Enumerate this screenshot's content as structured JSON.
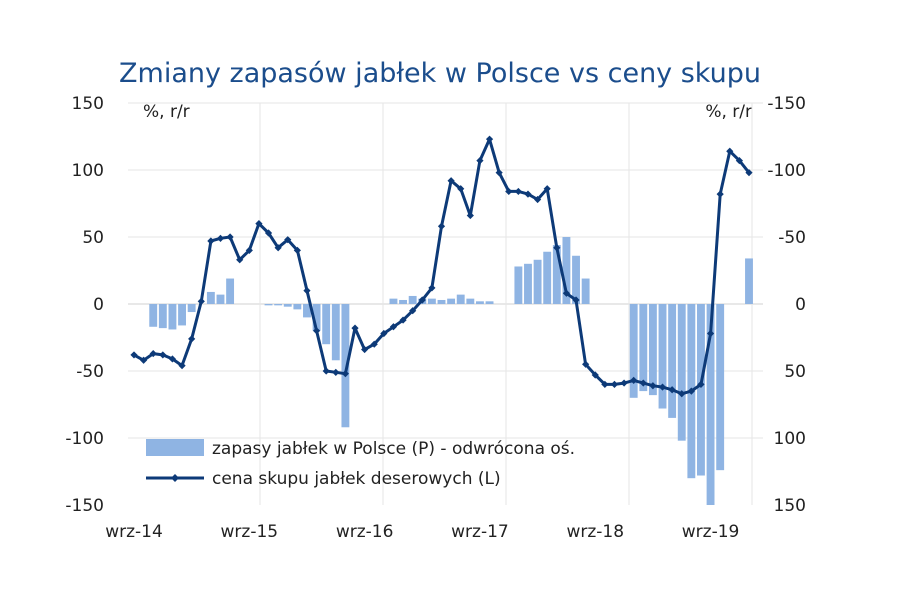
{
  "chart_data": {
    "type": "bar+line",
    "title": "Zmiany zapasów jabłek w Polsce vs ceny skupu",
    "left_axis": {
      "unit": "%, r/r",
      "ylim": [
        -150,
        150
      ],
      "ticks": [
        "150",
        "100",
        "50",
        "0",
        "-50",
        "-100",
        "-150"
      ]
    },
    "right_axis": {
      "unit": "%, r/r",
      "inverted": true,
      "ylim": [
        -150,
        150
      ],
      "ticks": [
        "-150",
        "-100",
        "-50",
        "0",
        "50",
        "100",
        "150"
      ]
    },
    "x_tick_labels": [
      "wrz-14",
      "wrz-15",
      "wrz-16",
      "wrz-17",
      "wrz-18",
      "wrz-19"
    ],
    "x_tick_index": [
      0,
      12,
      24,
      36,
      48,
      60
    ],
    "grid": true,
    "legend_position": "bottom-left",
    "series": [
      {
        "name": "zapasy jabłek w Polsce (P) - odwrócona oś.",
        "type": "bar",
        "axis": "right",
        "color": "#8fb4e3",
        "values": [
          null,
          null,
          17,
          18,
          19,
          16,
          6,
          null,
          -9,
          -7,
          -19,
          null,
          null,
          null,
          1,
          1,
          2,
          4,
          10,
          20,
          30,
          42,
          92,
          null,
          null,
          null,
          null,
          -4,
          -3,
          -6,
          -4,
          -4,
          -3,
          -4,
          -7,
          -4,
          -2,
          -2,
          null,
          null,
          -28,
          -30,
          -33,
          -39,
          -44,
          -50,
          -36,
          -19,
          null,
          null,
          null,
          null,
          70,
          65,
          68,
          78,
          85,
          102,
          130,
          128,
          150,
          124,
          null,
          null,
          -34
        ],
        "__note_": ""
      },
      {
        "name": "cena skupu jabłek deserowych (L)",
        "type": "line",
        "axis": "left",
        "color": "#0d3a78",
        "values": [
          -38,
          -42,
          -37,
          -38,
          -41,
          -46,
          -26,
          2,
          47,
          49,
          50,
          33,
          40,
          60,
          53,
          42,
          48,
          40,
          10,
          -20,
          -50,
          -51,
          -52,
          -18,
          -34,
          -30,
          -22,
          -17,
          -12,
          -5,
          3,
          12,
          58,
          92,
          86,
          66,
          107,
          123,
          98,
          84,
          84,
          82,
          78,
          86,
          42,
          8,
          3,
          -45,
          -53,
          -60,
          -60,
          -59,
          -57,
          -59,
          -61,
          -62,
          -64,
          -67,
          -65,
          -60,
          -22,
          82,
          114,
          107,
          98
        ]
      }
    ]
  }
}
